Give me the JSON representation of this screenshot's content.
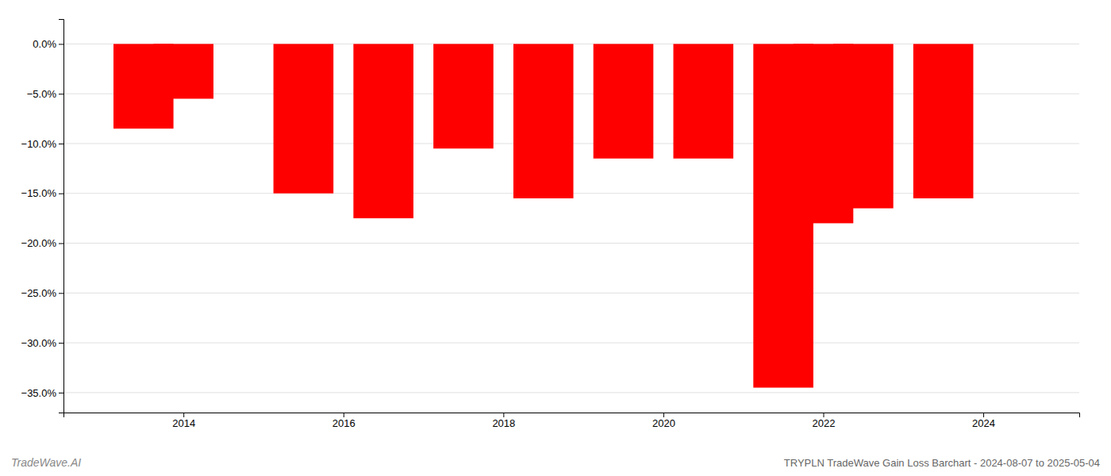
{
  "chart_data": {
    "type": "bar",
    "title": "TRYPLN TradeWave Gain Loss Barchart - 2024-08-07 to 2025-05-04",
    "annotations": [
      "TradeWave.AI"
    ],
    "x": [
      2013.5,
      2014.0,
      2015.5,
      2016.5,
      2017.5,
      2018.5,
      2019.5,
      2020.5,
      2021.5,
      2022.0,
      2022.5,
      2023.5
    ],
    "values": [
      -8.5,
      -5.5,
      -15.0,
      -17.5,
      -10.5,
      -15.5,
      -11.5,
      -11.5,
      -34.5,
      -18.0,
      -16.5,
      -15.5
    ],
    "color": "#FF0000",
    "xlim": [
      2012.5,
      2025.2
    ],
    "xticks": [
      2014,
      2016,
      2018,
      2020,
      2022,
      2024
    ],
    "ylim": [
      -37,
      2.5
    ],
    "yticks": [
      {
        "value": 0.0,
        "label": "0.0%"
      },
      {
        "value": -5.0,
        "label": "−5.0%"
      },
      {
        "value": -10.0,
        "label": "−10.0%"
      },
      {
        "value": -15.0,
        "label": "−15.0%"
      },
      {
        "value": -20.0,
        "label": "−20.0%"
      },
      {
        "value": -25.0,
        "label": "−25.0%"
      },
      {
        "value": -30.0,
        "label": "−30.0%"
      },
      {
        "value": -35.0,
        "label": "−35.0%"
      }
    ],
    "grid": true
  }
}
